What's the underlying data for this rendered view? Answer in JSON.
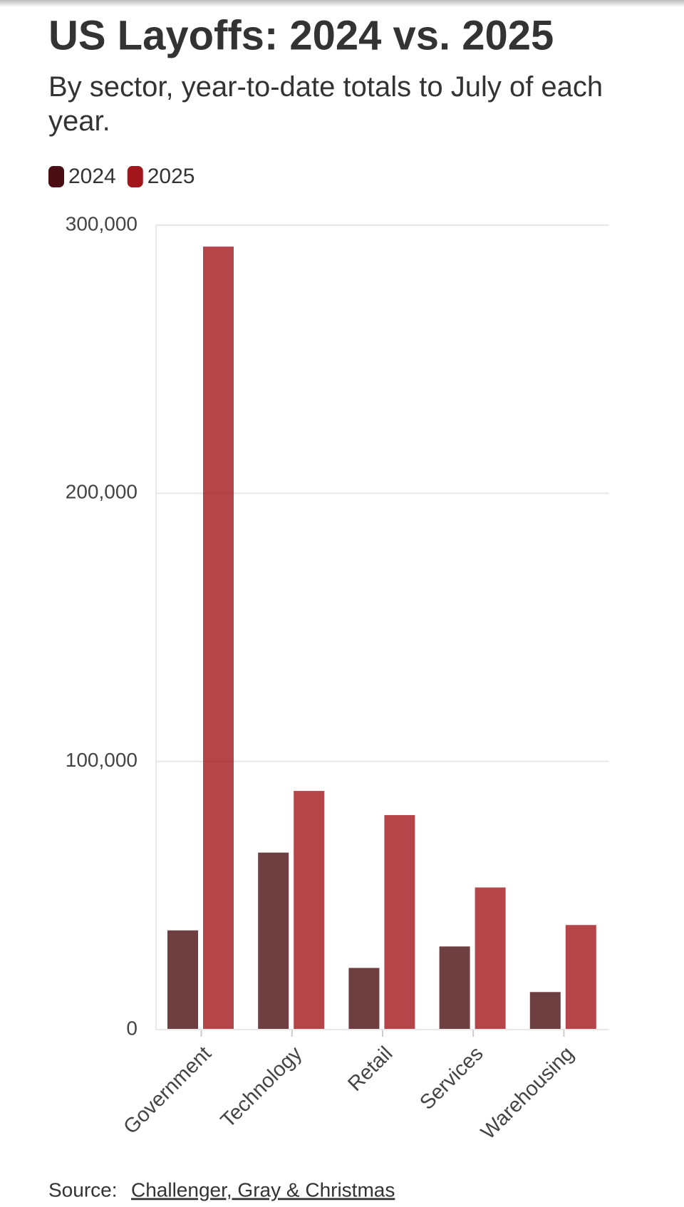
{
  "chart_data": {
    "type": "bar",
    "title": "US Layoffs: 2024 vs. 2025",
    "subtitle": "By sector, year-to-date totals to July of each year.",
    "categories": [
      "Government",
      "Technology",
      "Retail",
      "Services",
      "Warehousing"
    ],
    "series": [
      {
        "name": "2024",
        "color": "#4a0f12",
        "values": [
          37000,
          66000,
          23000,
          31000,
          14000
        ]
      },
      {
        "name": "2025",
        "color": "#a3161c",
        "values": [
          292000,
          89000,
          80000,
          53000,
          39000
        ]
      }
    ],
    "ylim": [
      0,
      300000
    ],
    "yticks": [
      0,
      {
        "value": 100000,
        "label": "100,000"
      },
      {
        "value": 200000,
        "label": "200,000"
      },
      {
        "value": 300000,
        "label": "300,000"
      }
    ],
    "grid": true,
    "source": {
      "label": "Source:",
      "link": "Challenger, Gray & Christmas"
    }
  }
}
